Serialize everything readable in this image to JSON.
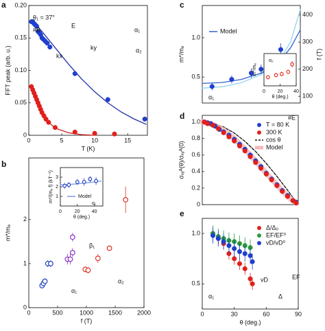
{
  "chart_data": [
    {
      "type": "scatter",
      "panel": "a",
      "xlabel": "T (K)",
      "ylabel": "FFT peak (arb. u.)",
      "xlim": [
        0,
        18
      ],
      "xticks": [
        0,
        5,
        10,
        15
      ],
      "ylim": [
        0,
        0.2
      ],
      "yticks": [
        0,
        0.05,
        {
          "value": 0.1,
          "label": "0.10"
        },
        0.15,
        {
          "value": 0.2,
          "label": "0.20"
        }
      ],
      "series": [
        {
          "mode": "line",
          "color": "#1f2fa8",
          "x": [
            0.4,
            2,
            4,
            6,
            8,
            10,
            12,
            14,
            16,
            17.8
          ],
          "values": [
            0.178,
            0.16,
            0.135,
            0.11,
            0.087,
            0.067,
            0.05,
            0.036,
            0.025,
            0.017
          ]
        },
        {
          "mode": "line",
          "color": "#d0201b",
          "x": [
            0.4,
            1,
            2,
            3,
            4,
            6,
            8,
            10
          ],
          "values": [
            0.078,
            0.06,
            0.035,
            0.02,
            0.011,
            0.004,
            0.001,
            0
          ]
        },
        {
          "mode": "markers",
          "marker": "filled",
          "color": "#1f3fcf",
          "x": [
            0.4,
            0.6,
            0.8,
            1.0,
            1.2,
            1.4,
            1.6,
            1.8,
            2.0,
            2.2,
            2.5,
            2.8,
            3.2,
            7.0,
            12.0,
            17.6
          ],
          "values": [
            0.175,
            0.175,
            0.172,
            0.17,
            0.168,
            0.16,
            0.158,
            0.155,
            0.15,
            0.148,
            0.145,
            0.142,
            0.136,
            0.095,
            0.055,
            0.025
          ]
        },
        {
          "mode": "markers",
          "marker": "filled",
          "color": "#e0201b",
          "x": [
            0.4,
            0.6,
            0.8,
            1.0,
            1.2,
            1.4,
            1.6,
            1.8,
            2.0,
            2.3,
            2.6,
            3.0,
            4.0,
            7.0,
            10.0,
            13.0
          ],
          "values": [
            0.075,
            0.07,
            0.065,
            0.06,
            0.055,
            0.05,
            0.045,
            0.04,
            0.035,
            0.03,
            0.025,
            0.02,
            0.012,
            0.005,
            0.003,
            0.002
          ]
        }
      ],
      "annotations": [
        "θ₁ = 37°",
        "#B",
        "E",
        "ky",
        "kx",
        "α₁",
        "α₂"
      ]
    },
    {
      "type": "scatter",
      "panel": "b",
      "xlabel": "f (T)",
      "ylabel": "m*/mₑ",
      "xlim": [
        0,
        2000
      ],
      "xticks": [
        0,
        500,
        1000,
        1500,
        2000
      ],
      "ylim": [
        0,
        3.4
      ],
      "yticks": [
        0,
        1,
        2
      ],
      "series": [
        {
          "mode": "markers",
          "marker": "open",
          "color": "#2040c0",
          "x": [
            230,
            255,
            280,
            330,
            380
          ],
          "values": [
            0.5,
            0.55,
            0.6,
            1.0,
            1.0
          ],
          "errors": [
            0.05,
            0.06,
            0.06,
            0.08,
            0.08
          ]
        },
        {
          "mode": "markers",
          "marker": "open",
          "color": "#8b2fc9",
          "x": [
            670,
            720,
            760,
            760
          ],
          "values": [
            1.1,
            1.1,
            1.25,
            1.6
          ],
          "errors": [
            0.12,
            0.12,
            0.1,
            0.1
          ]
        },
        {
          "mode": "markers",
          "marker": "open",
          "color": "#e03020",
          "x": [
            980,
            1030,
            1200,
            1400,
            1680
          ],
          "values": [
            0.87,
            0.85,
            1.12,
            1.35,
            2.45
          ],
          "errors": [
            0.07,
            0.07,
            0.1,
            0.05,
            0.3
          ]
        }
      ],
      "annotations": [
        "α₁",
        "β₁",
        "α₂"
      ]
    },
    {
      "type": "scatter",
      "panel": "b-inset",
      "xlabel": "θ (deg.)",
      "ylabel": "m*/(mₑ f) (kT⁻¹)",
      "xlim": [
        0,
        50
      ],
      "xticks": [
        0,
        20,
        40
      ],
      "ylim": [
        0,
        4
      ],
      "yticks": [
        1,
        2,
        3
      ],
      "series": [
        {
          "name": "Model",
          "mode": "line",
          "color": "#7b9be8",
          "x": [
            0,
            10,
            20,
            30,
            40,
            48
          ],
          "values": [
            2.2,
            2.25,
            2.3,
            2.4,
            2.5,
            2.6
          ]
        },
        {
          "mode": "markers",
          "marker": "open",
          "color": "#2040c0",
          "x": [
            5,
            10,
            20,
            28,
            35,
            42
          ],
          "values": [
            2.1,
            2.2,
            2.5,
            2.5,
            2.8,
            2.6
          ],
          "errors": [
            0.3,
            0.3,
            0.3,
            0.4,
            0.3,
            0.4
          ]
        }
      ],
      "annotations": [
        "α₁"
      ]
    },
    {
      "type": "scatter",
      "panel": "c",
      "ylabel": "m*/mₑ",
      "y2label": "f (T)",
      "xlim": [
        0,
        50
      ],
      "ylim": [
        0.17,
        1.41
      ],
      "yticks": [
        0.5,
        {
          "value": 1,
          "label": "1.0"
        }
      ],
      "y2lim": [
        75,
        435
      ],
      "y2ticks": [
        100,
        200,
        300,
        400
      ],
      "series": [
        {
          "name": "Model",
          "mode": "line",
          "color": "#3060d0",
          "x": [
            0,
            10,
            20,
            30,
            35,
            40,
            45,
            50
          ],
          "values": [
            0.42,
            0.43,
            0.47,
            0.55,
            0.62,
            0.72,
            0.87,
            1.1
          ]
        },
        {
          "mode": "line",
          "axis": "y2",
          "color": "#8fd3f0",
          "x": [
            0,
            10,
            20,
            30,
            35,
            40,
            45,
            50
          ],
          "values": [
            130,
            135,
            150,
            180,
            205,
            240,
            300,
            420
          ]
        },
        {
          "mode": "markers",
          "marker": "filled",
          "color": "#1f3fcf",
          "x": [
            5,
            15,
            25,
            30,
            35,
            40
          ],
          "values": [
            0.38,
            0.47,
            0.55,
            0.6,
            0.7,
            0.85
          ],
          "errors": [
            0.05,
            0.05,
            0.06,
            0.06,
            0.07,
            0.08
          ]
        }
      ],
      "annotations": [
        "α₁"
      ]
    },
    {
      "type": "scatter",
      "panel": "c-inset",
      "xlabel": "θ (deg.)",
      "ylabel": "m*/mₑ",
      "xlim": [
        0,
        40
      ],
      "xticks": [
        0,
        20,
        40
      ],
      "ylim": [
        0.5,
        2
      ],
      "series": [
        {
          "mode": "markers",
          "marker": "open",
          "color": "#e03020",
          "x": [
            5,
            15,
            22,
            30,
            35
          ],
          "values": [
            0.9,
            1.0,
            1.05,
            1.15,
            1.5
          ],
          "errors": [
            0.1,
            0.1,
            0.1,
            0.1,
            0.15
          ]
        }
      ],
      "annotations": [
        "α₂"
      ]
    },
    {
      "type": "scatter",
      "panel": "d",
      "ylabel": "σₓᵧᴬ(θ)/σₓᵧᴬ(0)",
      "xlim": [
        0,
        90
      ],
      "ylim": [
        0,
        1.08
      ],
      "yticks": [
        0,
        0.2,
        0.4,
        0.6,
        0.8,
        {
          "value": 1,
          "label": "1.0"
        }
      ],
      "series": [
        {
          "name": "T = 80 K",
          "mode": "markers",
          "marker": "filled",
          "color": "#1f3fcf",
          "x": [
            2,
            5,
            8,
            12,
            16,
            20,
            25,
            30,
            35,
            40,
            45,
            50,
            55,
            60,
            65,
            70,
            75,
            80,
            85,
            88
          ],
          "values": [
            1,
            0.99,
            0.98,
            0.95,
            0.91,
            0.88,
            0.84,
            0.79,
            0.73,
            0.67,
            0.6,
            0.53,
            0.46,
            0.38,
            0.31,
            0.24,
            0.17,
            0.11,
            0.05,
            0.03
          ],
          "errors": [
            0.03,
            0.03,
            0.03,
            0.03,
            0.03,
            0.03,
            0.03,
            0.03,
            0.03,
            0.03,
            0.03,
            0.03,
            0.03,
            0.03,
            0.03,
            0.03,
            0.03,
            0.03,
            0.03,
            0.03
          ]
        },
        {
          "name": "300 K",
          "mode": "markers",
          "marker": "filled",
          "color": "#e0201b",
          "x": [
            2,
            5,
            10,
            15,
            20,
            25,
            30,
            35,
            40,
            45,
            50,
            55,
            60,
            65,
            70,
            75,
            80,
            85,
            88
          ],
          "values": [
            1,
            0.98,
            0.96,
            0.92,
            0.87,
            0.82,
            0.77,
            0.71,
            0.65,
            0.58,
            0.51,
            0.44,
            0.37,
            0.3,
            0.23,
            0.16,
            0.1,
            0.05,
            0.02
          ]
        },
        {
          "name": "cos θ",
          "mode": "dashed",
          "color": "#111111",
          "x": [
            0,
            10,
            20,
            30,
            40,
            50,
            60,
            70,
            80,
            90
          ],
          "values": [
            1,
            0.985,
            0.94,
            0.866,
            0.766,
            0.643,
            0.5,
            0.342,
            0.174,
            0
          ]
        },
        {
          "name": "Model",
          "mode": "band",
          "color": "#f4b6b6",
          "x": [
            0,
            10,
            20,
            30,
            40,
            50,
            60,
            70,
            80,
            88
          ],
          "values": [
            1,
            0.97,
            0.9,
            0.8,
            0.67,
            0.53,
            0.38,
            0.24,
            0.1,
            0.02
          ]
        }
      ],
      "annotations": [
        "#E"
      ]
    },
    {
      "type": "scatter",
      "panel": "e",
      "xlabel": "θ (deg.)",
      "xlim": [
        0,
        90
      ],
      "xticks": [
        0,
        30,
        60,
        90
      ],
      "ylim": [
        0.25,
        1.15
      ],
      "yticks": [
        0.5,
        {
          "value": 1,
          "label": "1.0"
        }
      ],
      "series": [
        {
          "name": "Δ/Δ₀",
          "mode": "markers",
          "marker": "filled",
          "color": "#e0201b",
          "x": [
            10,
            15,
            20,
            25,
            30,
            35,
            40,
            45,
            47
          ],
          "values": [
            1.0,
            0.95,
            0.9,
            0.8,
            0.75,
            0.7,
            0.65,
            0.55,
            0.5
          ],
          "errors": [
            0.06,
            0.06,
            0.06,
            0.06,
            0.06,
            0.06,
            0.06,
            0.06,
            0.06
          ]
        },
        {
          "name": "EF/EF⁰",
          "mode": "markers",
          "marker": "filled",
          "color": "#2a9a3a",
          "x": [
            10,
            15,
            20,
            25,
            30,
            35,
            40,
            45
          ],
          "values": [
            1.0,
            0.97,
            0.95,
            0.93,
            0.92,
            0.9,
            0.88,
            0.86
          ],
          "errors": [
            0.08,
            0.08,
            0.08,
            0.08,
            0.08,
            0.08,
            0.08,
            0.08
          ]
        },
        {
          "name": "vD/vD⁰",
          "mode": "markers",
          "marker": "filled",
          "color": "#1f3fcf",
          "x": [
            10,
            15,
            20,
            25,
            30,
            35,
            40,
            45,
            47
          ],
          "values": [
            0.98,
            0.95,
            0.92,
            0.88,
            0.85,
            0.82,
            0.8,
            0.78,
            0.72
          ],
          "errors": [
            0.08,
            0.08,
            0.08,
            0.08,
            0.08,
            0.08,
            0.08,
            0.08,
            0.08
          ]
        }
      ],
      "annotations": [
        "α₁",
        "EF",
        "vD",
        "Δ"
      ]
    }
  ]
}
